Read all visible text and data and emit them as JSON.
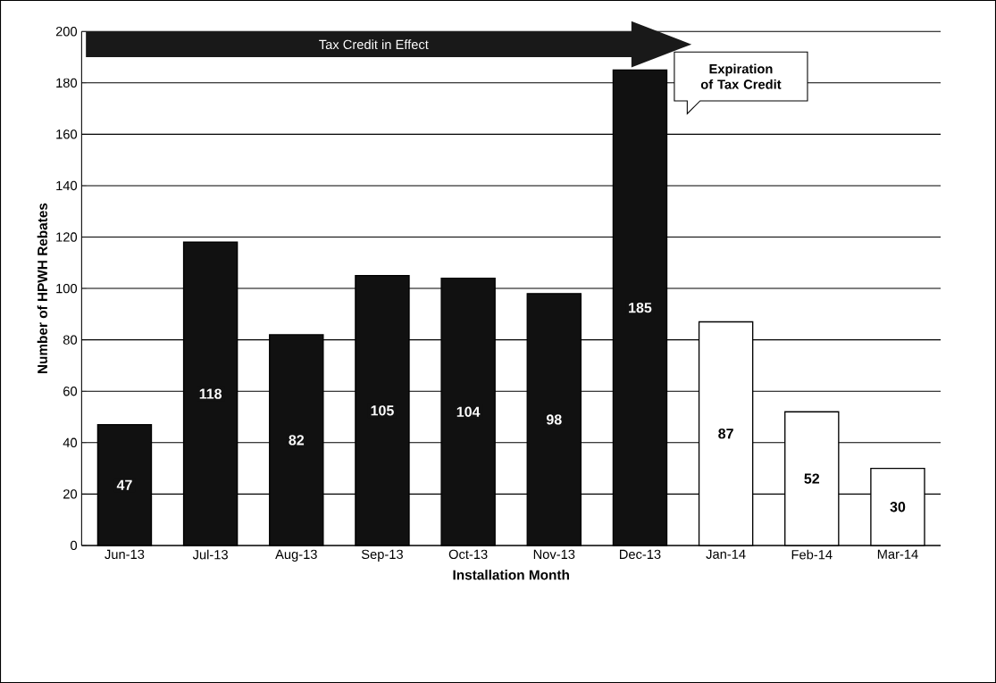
{
  "chart_data": {
    "type": "bar",
    "xlabel": "Installation Month",
    "ylabel": "Number of HPWH Rebates",
    "categories": [
      "Jun-13",
      "Jul-13",
      "Aug-13",
      "Sep-13",
      "Oct-13",
      "Nov-13",
      "Dec-13",
      "Jan-14",
      "Feb-14",
      "Mar-14"
    ],
    "values": [
      47,
      118,
      82,
      105,
      104,
      98,
      185,
      87,
      52,
      30
    ],
    "colors": [
      "#111111",
      "#111111",
      "#111111",
      "#111111",
      "#111111",
      "#111111",
      "#111111",
      "#ffffff",
      "#ffffff",
      "#ffffff"
    ],
    "ylim": [
      0,
      200
    ],
    "yticks": [
      0,
      20,
      40,
      60,
      80,
      100,
      120,
      140,
      160,
      180,
      200
    ],
    "grid": "y",
    "data_labels": true,
    "annotations": [
      "Tax Credit in Effect",
      "Expiration of Tax Credit"
    ]
  }
}
